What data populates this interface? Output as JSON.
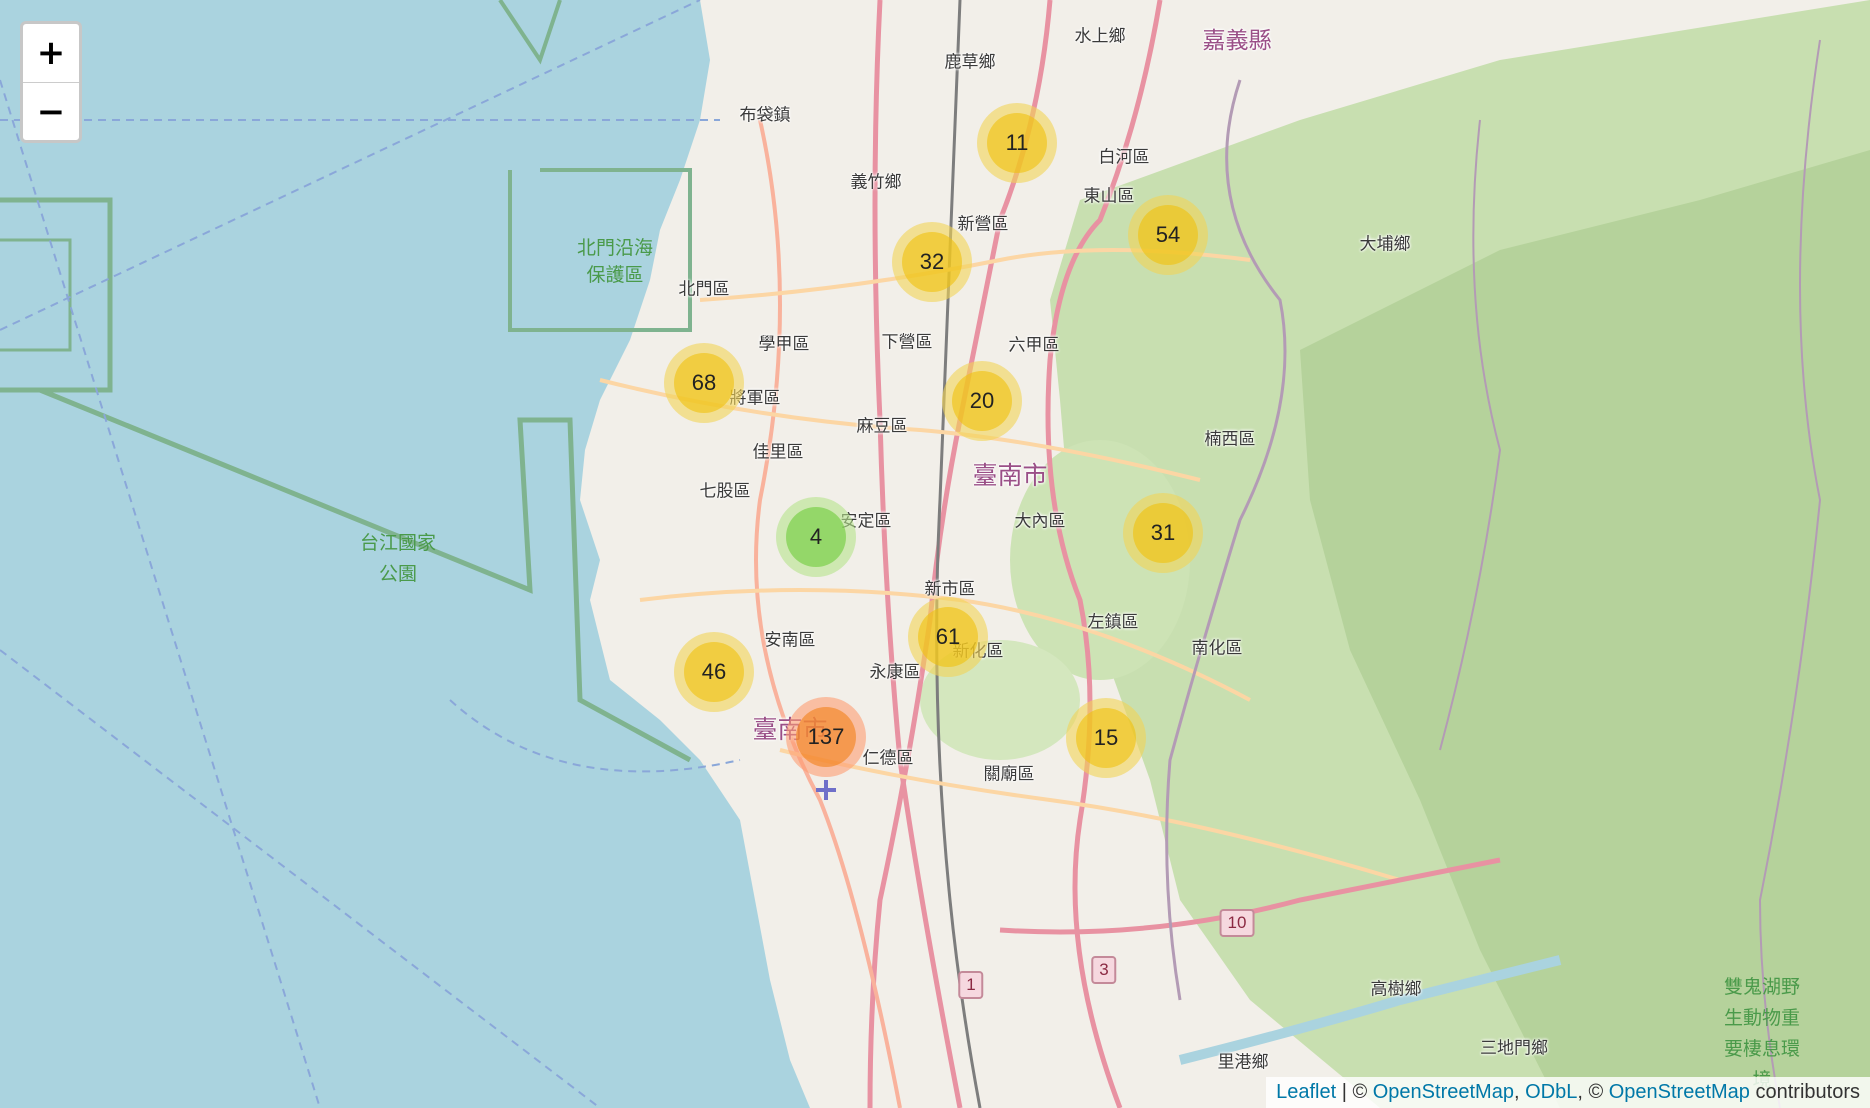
{
  "map": {
    "zoom_in_label": "+",
    "zoom_out_label": "−",
    "clusters": [
      {
        "count": "11",
        "size": "medium"
      },
      {
        "count": "54",
        "size": "medium"
      },
      {
        "count": "32",
        "size": "medium"
      },
      {
        "count": "68",
        "size": "medium"
      },
      {
        "count": "20",
        "size": "medium"
      },
      {
        "count": "4",
        "size": "small"
      },
      {
        "count": "31",
        "size": "medium"
      },
      {
        "count": "61",
        "size": "medium"
      },
      {
        "count": "46",
        "size": "medium"
      },
      {
        "count": "137",
        "size": "large"
      },
      {
        "count": "15",
        "size": "medium"
      }
    ],
    "places": [
      "水上鄉",
      "嘉義縣",
      "鹿草鄉",
      "布袋鎮",
      "白河區",
      "義竹鄉",
      "東山區",
      "新營區",
      "北門沿海",
      "保護區",
      "北門區",
      "大埔鄉",
      "學甲區",
      "下營區",
      "六甲區",
      "將軍區",
      "麻豆區",
      "佳里區",
      "臺南市",
      "楠西區",
      "七股區",
      "安定區",
      "大內區",
      "台江國家",
      "公園",
      "新市區",
      "左鎮區",
      "南化區",
      "安南區",
      "永康區",
      "新化區",
      "臺南市",
      "仁德區",
      "關廟區",
      "高樹鄉",
      "三地門鄉",
      "里港鄉",
      "雙鬼湖野",
      "生動物重",
      "要棲息環",
      "境"
    ],
    "route_shields": [
      "10",
      "3",
      "1"
    ],
    "attribution": {
      "leaflet": "Leaflet",
      "sep1": " | © ",
      "osm": "OpenStreetMap",
      "comma": ", ",
      "odbl": "ODbL",
      "sep2": ", © ",
      "osm2": "OpenStreetMap",
      "contributors": " contributors"
    }
  }
}
